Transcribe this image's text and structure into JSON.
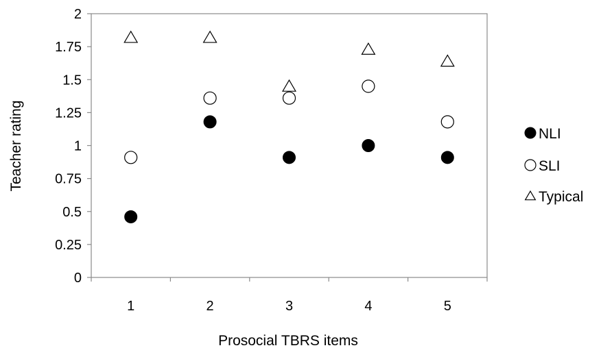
{
  "chart_data": {
    "type": "scatter",
    "title": "",
    "xlabel": "Prosocial TBRS items",
    "ylabel": "Teacher rating",
    "categories": [
      "1",
      "2",
      "3",
      "4",
      "5"
    ],
    "ylim": [
      0,
      2
    ],
    "yticks": [
      "0",
      "0.25",
      "0.5",
      "0.75",
      "1",
      "1.25",
      "1.5",
      "1.75",
      "2"
    ],
    "grid": false,
    "legend_position": "right",
    "series": [
      {
        "name": "NLI",
        "marker": "filled-circle",
        "values": [
          0.46,
          1.18,
          0.91,
          1.0,
          0.91
        ]
      },
      {
        "name": "SLI",
        "marker": "open-circle",
        "values": [
          0.91,
          1.36,
          1.36,
          1.45,
          1.18
        ]
      },
      {
        "name": "Typical",
        "marker": "open-triangle",
        "values": [
          1.82,
          1.82,
          1.45,
          1.73,
          1.64
        ]
      }
    ],
    "colors": {
      "marker": "#000000",
      "fill_open": "#ffffff"
    }
  }
}
